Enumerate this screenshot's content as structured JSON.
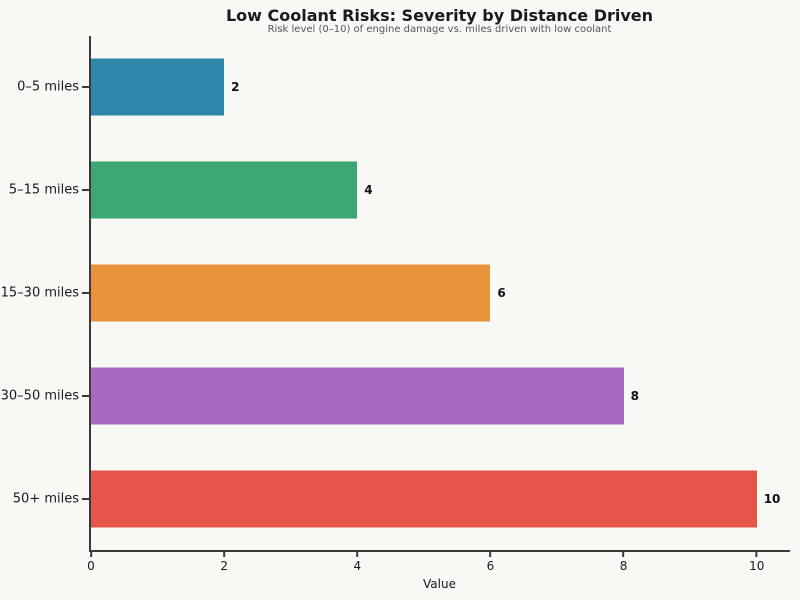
{
  "chart_data": {
    "type": "bar",
    "orientation": "horizontal",
    "title": "Low Coolant Risks: Severity by Distance Driven",
    "subtitle": "Risk level (0–10) of engine damage vs. miles driven with low coolant",
    "xlabel": "Value",
    "categories": [
      "0–5 miles",
      "5–15 miles",
      "15–30 miles",
      "30–50 miles",
      "50+ miles"
    ],
    "values": [
      2,
      4,
      6,
      8,
      10
    ],
    "value_labels": [
      "2",
      "4",
      "6",
      "8",
      "10"
    ],
    "bar_colors": [
      "#2e86a8",
      "#3da873",
      "#e8923c",
      "#a66bbe",
      "#e4564a"
    ],
    "xlim": [
      0,
      10.5
    ],
    "xticks": [
      0,
      2,
      4,
      6,
      8,
      10
    ],
    "grid": false,
    "legend_position": "none"
  },
  "style": {
    "background": "#f8f8f5",
    "spine_color": "#3a3a3a",
    "text_color": "#1a1a1a",
    "subtitle_color": "#555555",
    "value_label_color": "#111111"
  }
}
